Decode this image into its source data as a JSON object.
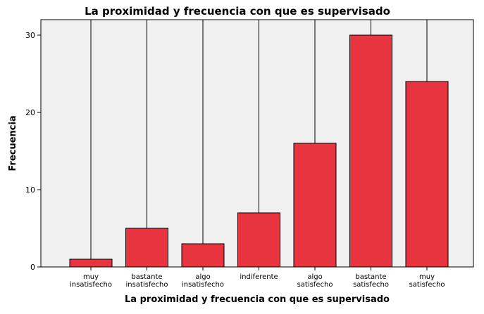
{
  "chart_data": {
    "type": "bar",
    "title": "La proximidad y frecuencia con que es supervisado",
    "xlabel": "La proximidad y frecuencia con que es supervisado",
    "ylabel": "Frecuencia",
    "categories": [
      [
        "muy",
        "insatisfecho"
      ],
      [
        "bastante",
        "insatisfecho"
      ],
      [
        "algo",
        "insatisfecho"
      ],
      [
        "indiferente"
      ],
      [
        "algo",
        "satisfecho"
      ],
      [
        "bastante",
        "satisfecho"
      ],
      [
        "muy",
        "satisfecho"
      ]
    ],
    "values": [
      1,
      5,
      3,
      7,
      16,
      30,
      24
    ],
    "ylim": [
      0,
      32
    ],
    "yticks": [
      0,
      10,
      20,
      30
    ],
    "grid": false,
    "colors": {
      "bar_fill": "#e8343f",
      "bar_stroke": "#000000",
      "plot_background": "#f0f0f0",
      "drop_line": "#000000"
    }
  }
}
